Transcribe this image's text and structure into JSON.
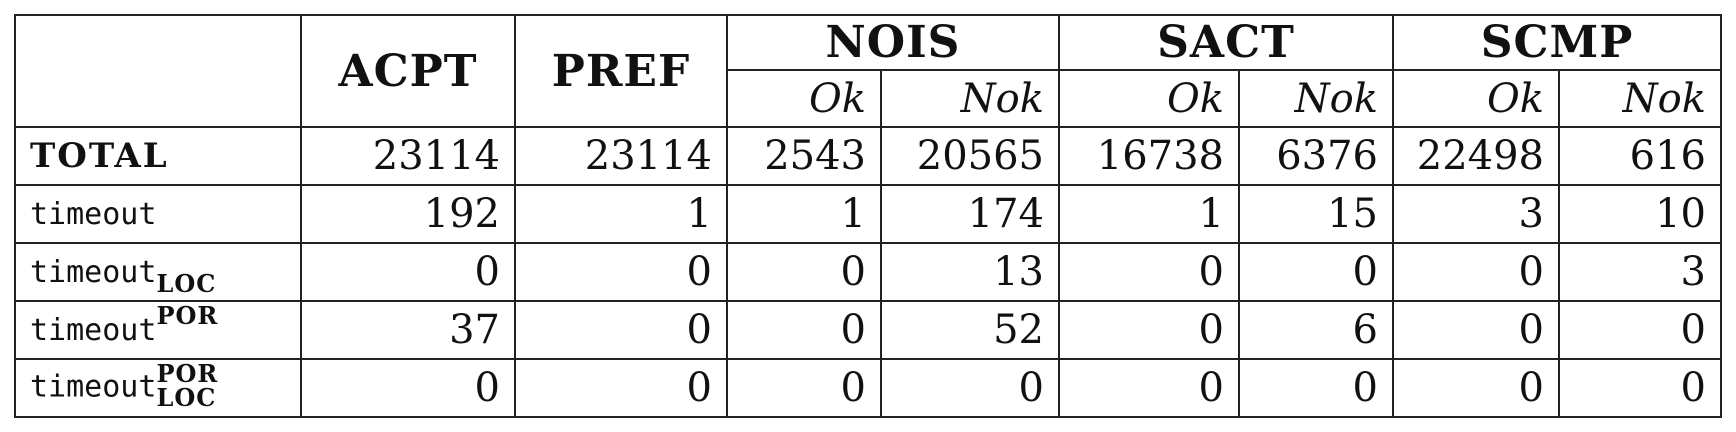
{
  "table": {
    "group_headers": {
      "acpt": "ACPT",
      "pref": "PREF",
      "nois": "NOIS",
      "sact": "SACT",
      "scmp": "SCMP"
    },
    "sub_headers": {
      "nois_ok": "Ok",
      "nois_nok": "Nok",
      "sact_ok": "Ok",
      "sact_nok": "Nok",
      "scmp_ok": "Ok",
      "scmp_nok": "Nok"
    },
    "rows": [
      {
        "label": "TOTAL",
        "values": [
          "23114",
          "23114",
          "2543",
          "20565",
          "16738",
          "6376",
          "22498",
          "616"
        ]
      },
      {
        "label": "timeout",
        "values": [
          "192",
          "1",
          "1",
          "174",
          "1",
          "15",
          "3",
          "10"
        ]
      },
      {
        "label": "timeout",
        "subscript": "LOC",
        "values": [
          "0",
          "0",
          "0",
          "13",
          "0",
          "0",
          "0",
          "3"
        ]
      },
      {
        "label": "timeout",
        "superscript": "POR",
        "values": [
          "37",
          "0",
          "0",
          "52",
          "0",
          "6",
          "0",
          "0"
        ]
      },
      {
        "label": "timeout",
        "superscript": "POR",
        "subscript": "LOC",
        "values": [
          "0",
          "0",
          "0",
          "0",
          "0",
          "0",
          "0",
          "0"
        ]
      }
    ]
  }
}
